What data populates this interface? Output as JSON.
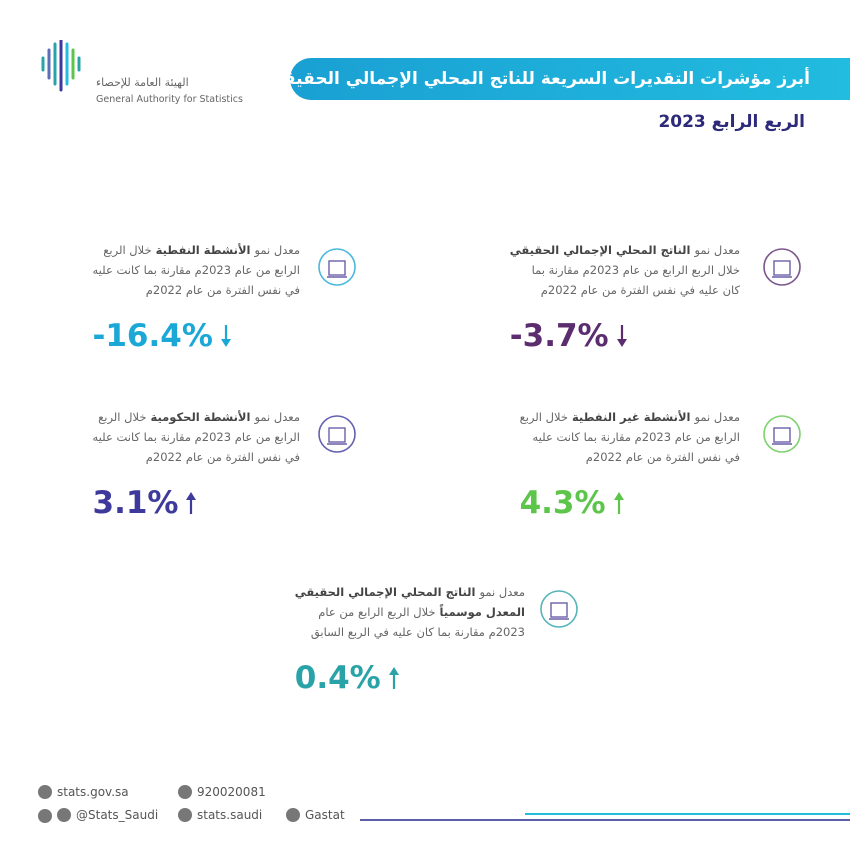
{
  "header": {
    "logo_ar": "الهيئة العامة للإحصاء",
    "logo_en": "General Authority for Statistics",
    "title": "أبرز مؤشرات التقديرات السريعة للناتج المحلي الإجمالي الحقيقي",
    "subtitle": "الربع الرابع 2023"
  },
  "indicators": [
    {
      "lines": [
        [
          {
            "t": "معدل نمو"
          },
          {
            "t": "الناتج المحلي الإجمالي الحقيقي",
            "b": true
          }
        ],
        [
          {
            "t": "خلال الربع الرابع من عام 2023م مقارنة بما"
          }
        ],
        [
          {
            "t": "كان عليه في نفس الفترة من عام 2022م"
          }
        ]
      ],
      "value": "-3.7%",
      "trend": "down",
      "color": "#5b2d6e"
    },
    {
      "lines": [
        [
          {
            "t": "معدل نمو"
          },
          {
            "t": "الأنشطة النفطية",
            "b": true
          },
          {
            "t": "خلال الربع"
          }
        ],
        [
          {
            "t": "الرابع من عام 2023م مقارنة بما كانت عليه"
          }
        ],
        [
          {
            "t": "في نفس الفترة من عام 2022م"
          }
        ]
      ],
      "value": "-16.4%",
      "trend": "down",
      "color": "#1ba8d6"
    },
    {
      "lines": [
        [
          {
            "t": "معدل نمو"
          },
          {
            "t": "الأنشطة غير النفطية",
            "b": true
          },
          {
            "t": "خلال الربع"
          }
        ],
        [
          {
            "t": "الرابع من عام 2023م مقارنة بما كانت عليه"
          }
        ],
        [
          {
            "t": "في نفس الفترة من عام 2022م"
          }
        ]
      ],
      "value": "4.3%",
      "trend": "up",
      "color": "#5cc54a"
    },
    {
      "lines": [
        [
          {
            "t": "معدل نمو"
          },
          {
            "t": "الأنشطة الحكومية",
            "b": true
          },
          {
            "t": "خلال الربع"
          }
        ],
        [
          {
            "t": "الرابع من عام 2023م مقارنة بما كانت عليه"
          }
        ],
        [
          {
            "t": "في نفس الفترة من عام 2022م"
          }
        ]
      ],
      "value": "3.1%",
      "trend": "up",
      "color": "#3d3a9c"
    },
    {
      "lines": [
        [
          {
            "t": "معدل نمو"
          },
          {
            "t": "الناتج المحلي الإجمالي الحقيقي",
            "b": true
          }
        ],
        [
          {
            "t": "المعدل موسمياً",
            "b": true
          },
          {
            "t": "خلال الربع الرابع من عام"
          }
        ],
        [
          {
            "t": "2023م مقارنة بما كان عليه في الربع السابق"
          }
        ]
      ],
      "value": "0.4%",
      "trend": "up",
      "color": "#2aa3a8"
    }
  ],
  "footer": {
    "website": "stats.gov.sa",
    "phone": "920020081",
    "handle": "@Stats_Saudi",
    "facebook": "stats.saudi",
    "linkedin": "Gastat"
  }
}
